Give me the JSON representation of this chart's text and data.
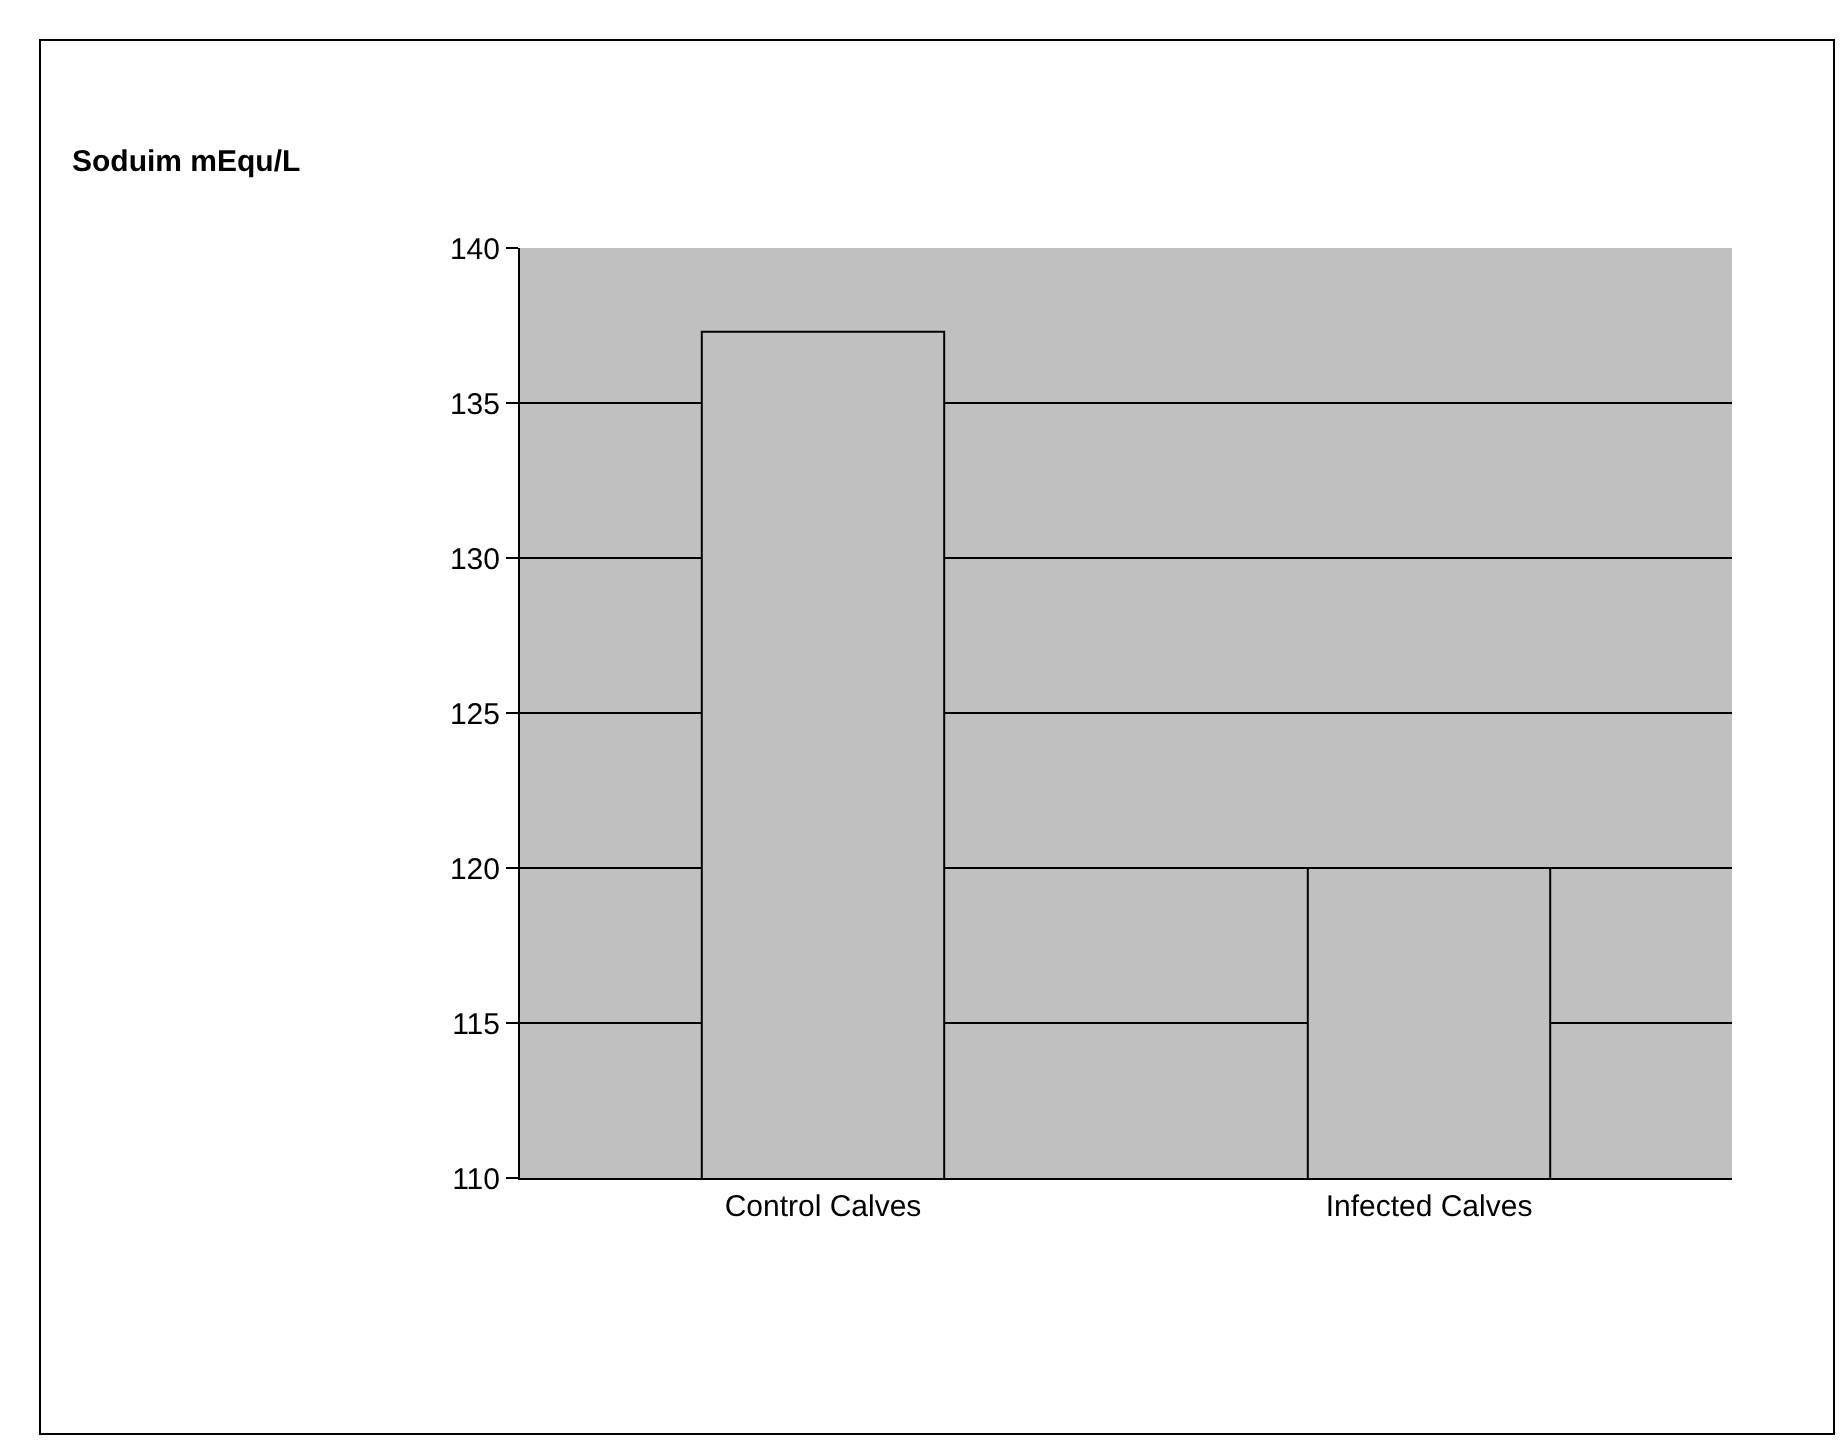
{
  "chart_data": {
    "type": "bar",
    "title": "Soduim mEqu/L",
    "categories": [
      "Control Calves",
      "Infected Calves"
    ],
    "values": [
      137.3,
      120
    ],
    "color": "#c0c0c0",
    "ylim": [
      110,
      140
    ],
    "yticks": [
      110,
      115,
      120,
      125,
      130,
      135,
      140
    ],
    "grid": "y",
    "legend": false
  }
}
